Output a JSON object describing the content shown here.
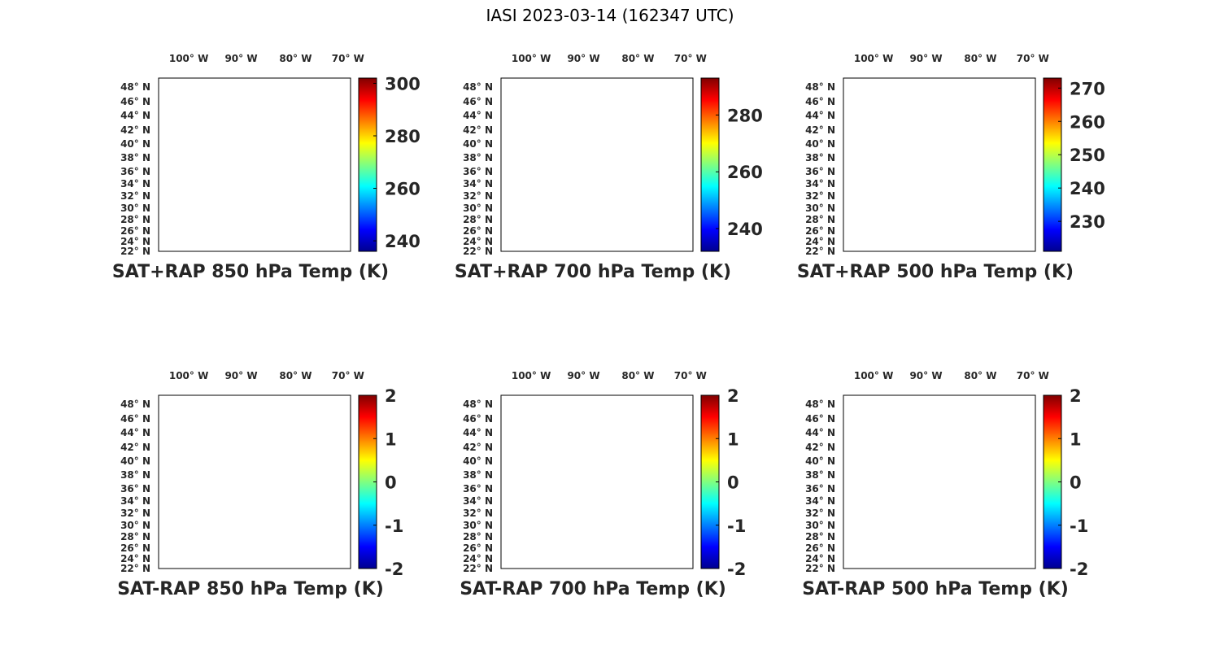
{
  "figure_title": "IASI 2023-03-14 (162347 UTC)",
  "lon_labels": [
    "100° W",
    "90° W",
    "80° W",
    "70° W"
  ],
  "lat_labels": [
    "48° N",
    "46° N",
    "44° N",
    "42° N",
    "40° N",
    "38° N",
    "36° N",
    "34° N",
    "32° N",
    "30° N",
    "28° N",
    "26° N",
    "24° N",
    "22° N"
  ],
  "colormap": "jet",
  "panels": [
    {
      "id": "sat-rap-sum-850",
      "title": "SAT+RAP 850 hPa Temp (K)",
      "kind": "temperature",
      "clim": [
        236,
        302
      ],
      "colorbar_ticks": [
        "240",
        "260",
        "280",
        "300"
      ],
      "colorbar_tick_values": [
        240,
        260,
        280,
        300
      ]
    },
    {
      "id": "sat-rap-sum-700",
      "title": "SAT+RAP 700 hPa Temp (K)",
      "kind": "temperature",
      "clim": [
        232,
        293
      ],
      "colorbar_ticks": [
        "240",
        "260",
        "280"
      ],
      "colorbar_tick_values": [
        240,
        260,
        280
      ]
    },
    {
      "id": "sat-rap-sum-500",
      "title": "SAT+RAP 500 hPa Temp (K)",
      "kind": "temperature",
      "clim": [
        221,
        273
      ],
      "colorbar_ticks": [
        "230",
        "240",
        "250",
        "260",
        "270"
      ],
      "colorbar_tick_values": [
        230,
        240,
        250,
        260,
        270
      ]
    },
    {
      "id": "sat-rap-diff-850",
      "title": "SAT-RAP 850 hPa Temp (K)",
      "kind": "difference",
      "clim": [
        -2,
        2
      ],
      "colorbar_ticks": [
        "-2",
        "-1",
        "0",
        "1",
        "2"
      ],
      "colorbar_tick_values": [
        -2,
        -1,
        0,
        1,
        2
      ]
    },
    {
      "id": "sat-rap-diff-700",
      "title": "SAT-RAP 700 hPa Temp (K)",
      "kind": "difference",
      "clim": [
        -2,
        2
      ],
      "colorbar_ticks": [
        "-2",
        "-1",
        "0",
        "1",
        "2"
      ],
      "colorbar_tick_values": [
        -2,
        -1,
        0,
        1,
        2
      ]
    },
    {
      "id": "sat-rap-diff-500",
      "title": "SAT-RAP 500 hPa Temp (K)",
      "kind": "difference",
      "clim": [
        -2,
        2
      ],
      "colorbar_ticks": [
        "-2",
        "-1",
        "0",
        "1",
        "2"
      ],
      "colorbar_tick_values": [
        -2,
        -1,
        0,
        1,
        2
      ]
    }
  ]
}
